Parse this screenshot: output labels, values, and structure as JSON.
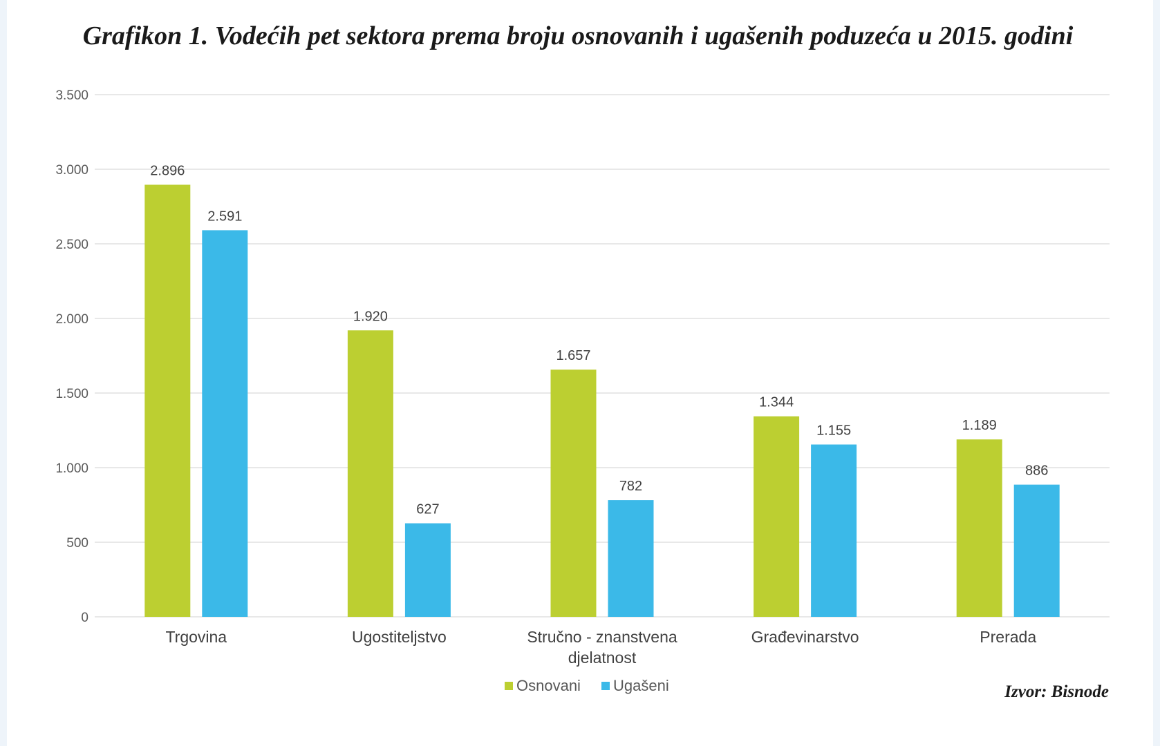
{
  "chart_data": {
    "type": "bar",
    "title": "Grafikon 1. Vodećih pet sektora prema broju osnovanih i ugašenih poduzeća u 2015. godini",
    "categories": [
      [
        "Trgovina"
      ],
      [
        "Ugostiteljstvo"
      ],
      [
        "Stručno - znanstvena",
        "djelatnost"
      ],
      [
        "Građevinarstvo"
      ],
      [
        "Prerada"
      ]
    ],
    "series": [
      {
        "name": "Osnovani",
        "color": "#bccf31",
        "values": [
          2896,
          1920,
          1657,
          1344,
          1189
        ],
        "labels": [
          "2.896",
          "1.920",
          "1.657",
          "1.344",
          "1.189"
        ]
      },
      {
        "name": "Ugašeni",
        "color": "#3bb9e8",
        "values": [
          2591,
          627,
          782,
          1155,
          886
        ],
        "labels": [
          "2.591",
          "627",
          "782",
          "1.155",
          "886"
        ]
      }
    ],
    "ylim": [
      0,
      3500
    ],
    "yticks": [
      {
        "value": 0,
        "label": "0"
      },
      {
        "value": 500,
        "label": "500"
      },
      {
        "value": 1000,
        "label": "1.000"
      },
      {
        "value": 1500,
        "label": "1.500"
      },
      {
        "value": 2000,
        "label": "2.000"
      },
      {
        "value": 2500,
        "label": "2.500"
      },
      {
        "value": 3000,
        "label": "3.000"
      },
      {
        "value": 3500,
        "label": "3.500"
      }
    ],
    "xlabel": "",
    "ylabel": "",
    "grid": true,
    "legend_position": "bottom-center",
    "source": "Izvor: Bisnode"
  }
}
